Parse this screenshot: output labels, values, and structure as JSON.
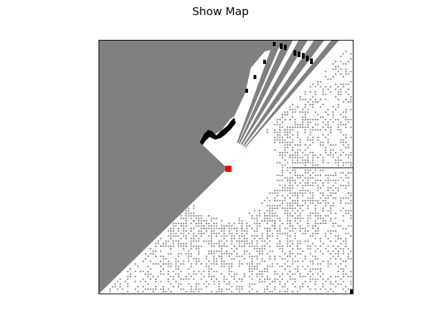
{
  "window": {
    "title": "Show Map"
  },
  "map": {
    "cell_colors": {
      "unknown": "#808080",
      "free": "#ffffff",
      "occupied": "#000000",
      "robot": "#ff0000"
    },
    "grid_size": 100,
    "robot_cell": [
      51,
      51
    ]
  }
}
